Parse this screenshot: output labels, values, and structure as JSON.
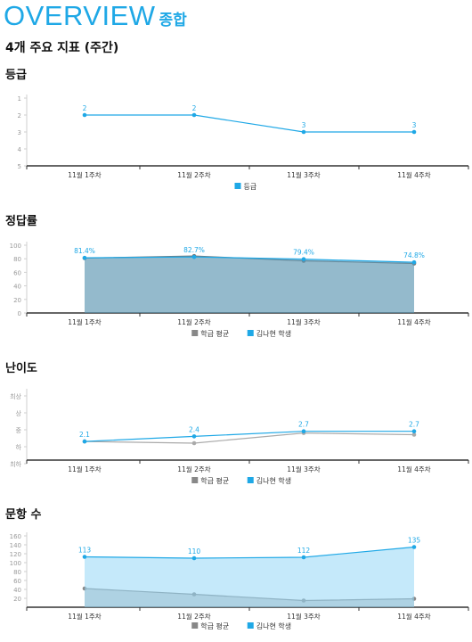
{
  "header": {
    "title": "OVERVIEW",
    "title_sub": "종합",
    "subtitle": "4개 주요 지표 (주간)"
  },
  "chart_data": [
    {
      "type": "line",
      "title": "등급",
      "categories": [
        "11월 1주차",
        "11월 2주차",
        "11월 3주차",
        "11월 4주차"
      ],
      "ylim": [
        1,
        5
      ],
      "y_inverted": true,
      "yticks": [
        "1",
        "2",
        "3",
        "4",
        "5"
      ],
      "series": [
        {
          "name": "등급",
          "values": [
            2,
            2,
            3,
            3
          ],
          "labels": [
            "2",
            "2",
            "3",
            "3"
          ],
          "color": "#1fa8e6"
        }
      ],
      "legend": "bottom-center"
    },
    {
      "type": "area",
      "title": "정답률",
      "categories": [
        "11월 1주차",
        "11월 2주차",
        "11월 3주차",
        "11월 4주차"
      ],
      "ylim": [
        0,
        100
      ],
      "yticks": [
        "0",
        "20",
        "40",
        "60",
        "80",
        "100"
      ],
      "series": [
        {
          "name": "학급 평균",
          "values": [
            81,
            84,
            77,
            73
          ],
          "color": "#888888"
        },
        {
          "name": "김나현 학생",
          "values": [
            81.4,
            82.7,
            79.4,
            74.8
          ],
          "labels": [
            "81.4%",
            "82.7%",
            "79.4%",
            "74.8%"
          ],
          "color": "#1fa8e6"
        }
      ],
      "legend": "bottom-center"
    },
    {
      "type": "line",
      "title": "난이도",
      "categories": [
        "11월 1주차",
        "11월 2주차",
        "11월 3주차",
        "11월 4주차"
      ],
      "ylim": [
        1,
        5
      ],
      "yticks": [
        "최하",
        "하",
        "중",
        "상",
        "최상"
      ],
      "series": [
        {
          "name": "학급 평균",
          "values": [
            2.1,
            2.0,
            2.6,
            2.5
          ],
          "color": "#aaaaaa"
        },
        {
          "name": "김나현 학생",
          "values": [
            2.1,
            2.4,
            2.7,
            2.7
          ],
          "labels": [
            "2.1",
            "2.4",
            "2.7",
            "2.7"
          ],
          "color": "#1fa8e6"
        }
      ],
      "legend": "bottom-center"
    },
    {
      "type": "area",
      "title": "문항 수",
      "categories": [
        "11월 1주차",
        "11월 2주차",
        "11월 3주차",
        "11월 4주차"
      ],
      "ylim": [
        0,
        160
      ],
      "yticks": [
        "20",
        "40",
        "60",
        "80",
        "100",
        "120",
        "140",
        "160"
      ],
      "series": [
        {
          "name": "학급 평균",
          "values": [
            42,
            29,
            15,
            19
          ],
          "color": "#888888"
        },
        {
          "name": "김나현 학생",
          "values": [
            113,
            110,
            112,
            135
          ],
          "labels": [
            "113",
            "110",
            "112",
            "135"
          ],
          "color": "#1fa8e6"
        }
      ],
      "legend": "bottom-center"
    }
  ]
}
